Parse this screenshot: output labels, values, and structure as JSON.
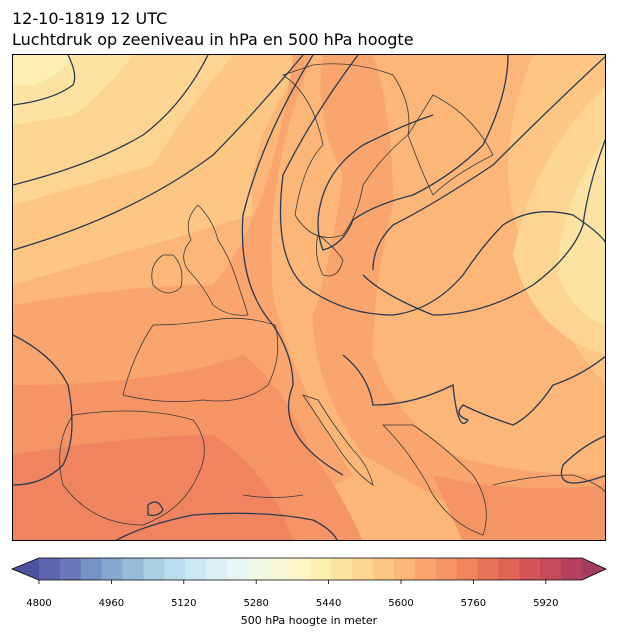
{
  "title": {
    "line1": "12-10-1819 12 UTC",
    "line2": "Luchtdruk op zeeniveau in hPa en 500 hPa hoogte"
  },
  "map": {
    "region": "Europe",
    "fill_field": "500 hPa geopotential height",
    "contour_field": "sea level pressure",
    "contour_color": "#2b3a55",
    "land_outline_color": "#3a3a3a"
  },
  "colorbar": {
    "label": "500 hPa hoogte in meter",
    "min": 4800,
    "max": 6000,
    "step": 40,
    "ticks": [
      4800,
      4960,
      5120,
      5280,
      5440,
      5600,
      5760,
      5920
    ],
    "extend": "both",
    "colormap": "Spectral_r",
    "colors": [
      "#5e63ad",
      "#6a7ab9",
      "#7892c6",
      "#86a7d0",
      "#97bcda",
      "#a9cfe3",
      "#bbdded",
      "#cce8f2",
      "#dcf0f5",
      "#e8f5f2",
      "#f1f8e6",
      "#f8f9d8",
      "#fdf6c5",
      "#fdeeb2",
      "#fde3a1",
      "#fdd592",
      "#fdc683",
      "#fcb677",
      "#f9a56d",
      "#f59464",
      "#f0845e",
      "#e97359",
      "#e06356",
      "#d45557",
      "#c64a5c",
      "#b5405f"
    ],
    "under_color": "#4d52a0",
    "over_color": "#a33c5f"
  }
}
